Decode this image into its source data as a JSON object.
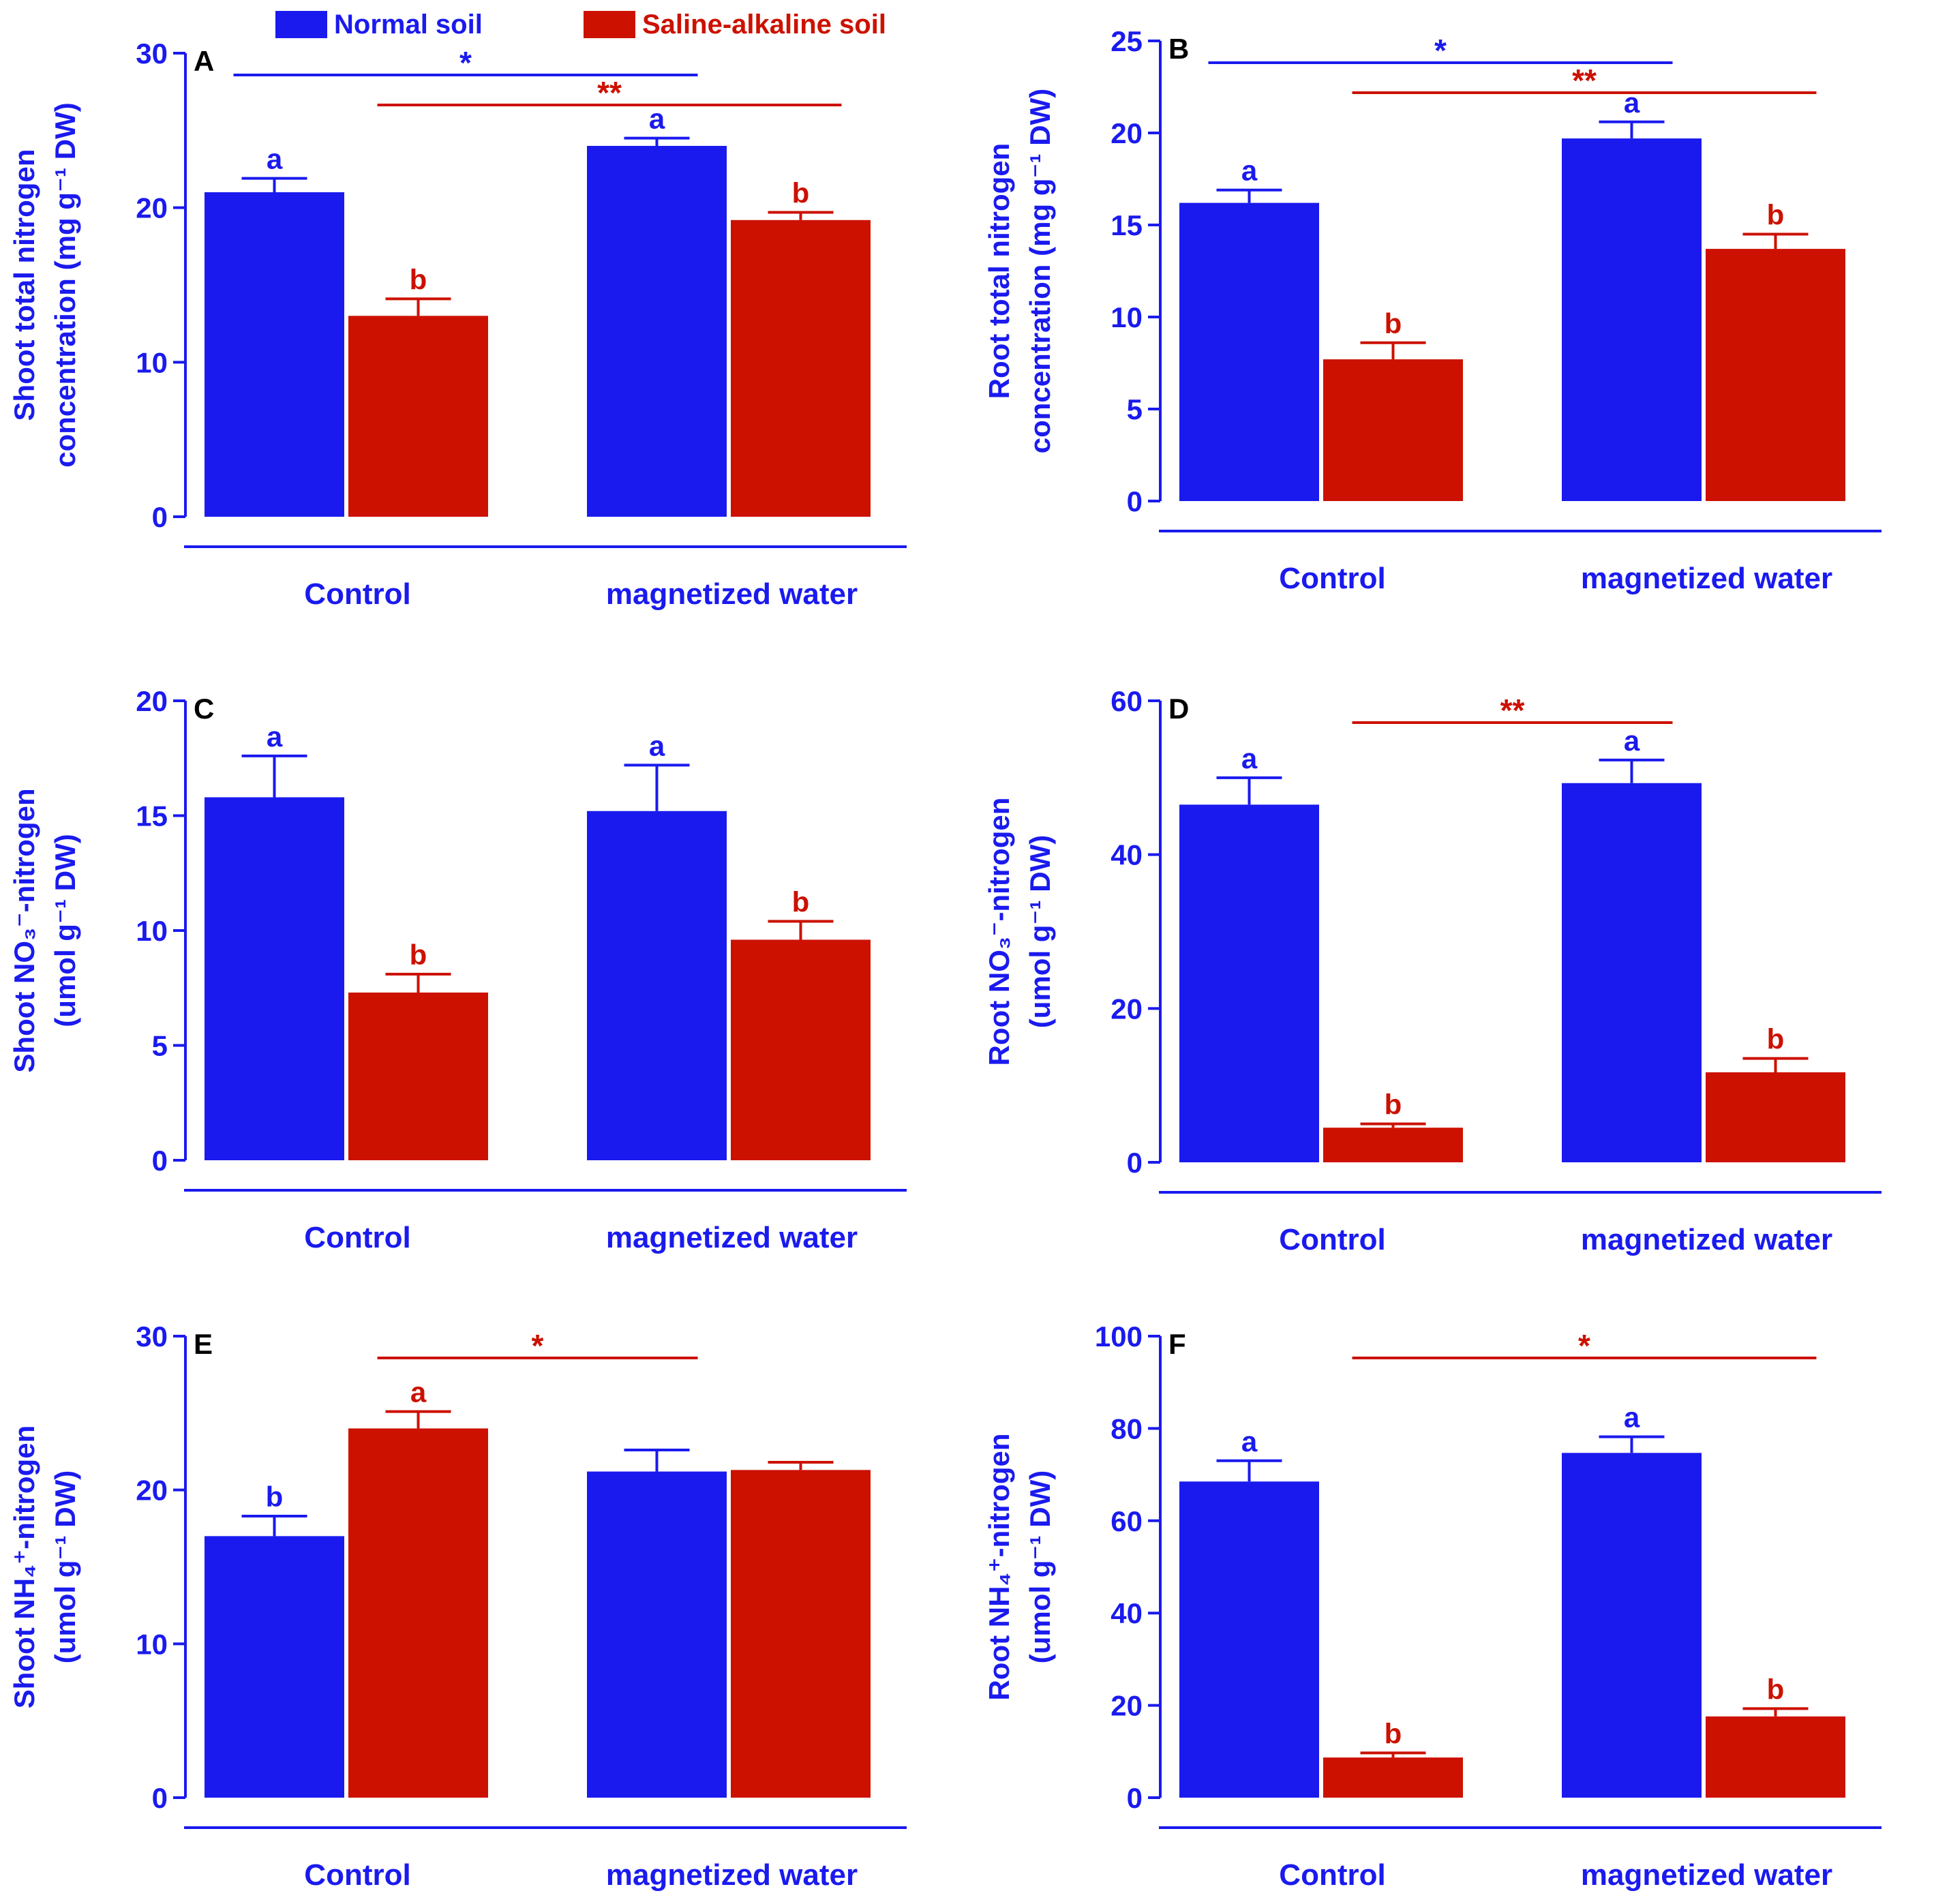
{
  "colors": {
    "normal": "#1a1aee",
    "saline": "#cc1100",
    "axis": "#1a1aee",
    "panel_letter": "#000000"
  },
  "legend": {
    "series": [
      {
        "name": "Normal soil",
        "color": "#1a1aee"
      },
      {
        "name": "Saline-alkaline soil",
        "color": "#cc1100"
      }
    ]
  },
  "chart_data": [
    {
      "type": "bar",
      "panel": "A",
      "ylabel_line1": "Shoot total nitrogen",
      "ylabel_line2": "concentration (mg g⁻¹ DW)",
      "ylim": [
        0,
        30
      ],
      "yticks": [
        "0",
        "10",
        "20",
        "30"
      ],
      "categories": [
        "Control",
        "magnetized water"
      ],
      "series": [
        {
          "name": "Normal soil",
          "values": [
            21.0,
            24.0
          ],
          "errors": [
            0.9,
            0.5
          ],
          "letters": [
            "a",
            "a"
          ]
        },
        {
          "name": "Saline-alkaline soil",
          "values": [
            13.0,
            19.2
          ],
          "errors": [
            1.1,
            0.5
          ],
          "letters": [
            "b",
            "b"
          ]
        }
      ],
      "brackets": [
        {
          "from": "Control|Normal soil",
          "to": "magnetized water|Normal soil",
          "label": "*",
          "series": 0
        },
        {
          "from": "Control|Saline-alkaline soil",
          "to": "magnetized water|Saline-alkaline soil",
          "label": "**",
          "series": 1
        }
      ]
    },
    {
      "type": "bar",
      "panel": "B",
      "ylabel_line1": "Root total nitrogen",
      "ylabel_line2": "concentration (mg g⁻¹ DW)",
      "ylim": [
        0,
        25
      ],
      "yticks": [
        "0",
        "5",
        "10",
        "15",
        "20",
        "25"
      ],
      "categories": [
        "Control",
        "magnetized water"
      ],
      "series": [
        {
          "name": "Normal soil",
          "values": [
            16.2,
            19.7
          ],
          "errors": [
            0.7,
            0.9
          ],
          "letters": [
            "a",
            "a"
          ]
        },
        {
          "name": "Saline-alkaline soil",
          "values": [
            7.7,
            13.7
          ],
          "errors": [
            0.9,
            0.8
          ],
          "letters": [
            "b",
            "b"
          ]
        }
      ],
      "brackets": [
        {
          "from": "Control|Normal soil",
          "to": "magnetized water|Normal soil",
          "label": "*",
          "series": 0
        },
        {
          "from": "Control|Saline-alkaline soil",
          "to": "magnetized water|Saline-alkaline soil",
          "label": "**",
          "series": 1
        }
      ]
    },
    {
      "type": "bar",
      "panel": "C",
      "ylabel_line1": "Shoot NO₃⁻-nitrogen",
      "ylabel_line2": "(umol g⁻¹ DW)",
      "ylim": [
        0,
        20
      ],
      "yticks": [
        "0",
        "5",
        "10",
        "15",
        "20"
      ],
      "categories": [
        "Control",
        "magnetized water"
      ],
      "series": [
        {
          "name": "Normal soil",
          "values": [
            15.8,
            15.2
          ],
          "errors": [
            1.8,
            2.0
          ],
          "letters": [
            "a",
            "a"
          ]
        },
        {
          "name": "Saline-alkaline soil",
          "values": [
            7.3,
            9.6
          ],
          "errors": [
            0.8,
            0.8
          ],
          "letters": [
            "b",
            "b"
          ]
        }
      ],
      "brackets": []
    },
    {
      "type": "bar",
      "panel": "D",
      "ylabel_line1": "Root NO₃⁻-nitrogen",
      "ylabel_line2": "(umol g⁻¹ DW)",
      "ylim": [
        0,
        60
      ],
      "yticks": [
        "0",
        "20",
        "40",
        "60"
      ],
      "categories": [
        "Control",
        "magnetized water"
      ],
      "series": [
        {
          "name": "Normal soil",
          "values": [
            46.5,
            49.3
          ],
          "errors": [
            3.5,
            3.0
          ],
          "letters": [
            "a",
            "a"
          ]
        },
        {
          "name": "Saline-alkaline soil",
          "values": [
            4.5,
            11.7
          ],
          "errors": [
            0.5,
            1.8
          ],
          "letters": [
            "b",
            "b"
          ]
        }
      ],
      "brackets": [
        {
          "from": "Control|Saline-alkaline soil",
          "to": "magnetized water|Normal soil",
          "label": "**",
          "series": 1
        }
      ]
    },
    {
      "type": "bar",
      "panel": "E",
      "ylabel_line1": "Shoot NH₄⁺-nitrogen",
      "ylabel_line2": "(umol g⁻¹ DW)",
      "ylim": [
        0,
        30
      ],
      "yticks": [
        "0",
        "10",
        "20",
        "30"
      ],
      "categories": [
        "Control",
        "magnetized water"
      ],
      "series": [
        {
          "name": "Normal soil",
          "values": [
            17.0,
            21.2
          ],
          "errors": [
            1.3,
            1.4
          ],
          "letters": [
            "b",
            ""
          ]
        },
        {
          "name": "Saline-alkaline soil",
          "values": [
            24.0,
            21.3
          ],
          "errors": [
            1.1,
            0.5
          ],
          "letters": [
            "a",
            ""
          ]
        }
      ],
      "brackets": [
        {
          "from": "Control|Saline-alkaline soil",
          "to": "magnetized water|Normal soil",
          "label": "*",
          "series": 1
        }
      ]
    },
    {
      "type": "bar",
      "panel": "F",
      "ylabel_line1": "Root NH₄⁺-nitrogen",
      "ylabel_line2": "(umol g⁻¹ DW)",
      "ylim": [
        0,
        100
      ],
      "yticks": [
        "0",
        "20",
        "40",
        "60",
        "80",
        "100"
      ],
      "categories": [
        "Control",
        "magnetized water"
      ],
      "series": [
        {
          "name": "Normal soil",
          "values": [
            68.5,
            74.7
          ],
          "errors": [
            4.5,
            3.5
          ],
          "letters": [
            "a",
            "a"
          ]
        },
        {
          "name": "Saline-alkaline soil",
          "values": [
            8.7,
            17.6
          ],
          "errors": [
            1.0,
            1.7
          ],
          "letters": [
            "b",
            "b"
          ]
        }
      ],
      "brackets": [
        {
          "from": "Control|Saline-alkaline soil",
          "to": "magnetized water|Saline-alkaline soil",
          "label": "*",
          "series": 1
        }
      ]
    }
  ]
}
